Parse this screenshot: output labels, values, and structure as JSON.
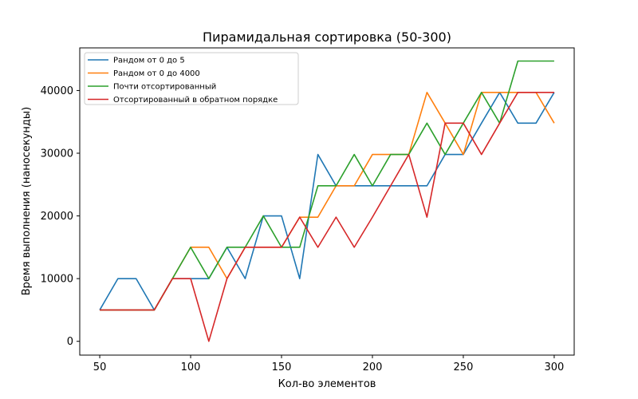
{
  "chart_data": {
    "type": "line",
    "title": "Пирамидальная сортировка (50-300)",
    "xlabel": "Кол-во элементов",
    "ylabel": "Время выполнения (наносекунды)",
    "xlim": [
      39,
      311
    ],
    "ylim": [
      -2200,
      46800
    ],
    "xticks": [
      50,
      100,
      150,
      200,
      250,
      300
    ],
    "yticks": [
      0,
      10000,
      20000,
      30000,
      40000
    ],
    "grid": false,
    "legend_position": "top-left",
    "x": [
      50,
      60,
      70,
      80,
      90,
      100,
      110,
      120,
      130,
      140,
      150,
      160,
      170,
      180,
      190,
      200,
      210,
      220,
      230,
      240,
      250,
      260,
      270,
      280,
      290,
      300
    ],
    "series": [
      {
        "name": "Рандом от 0 до 5",
        "color": "#1f77b4",
        "values": [
          5000,
          10000,
          10000,
          5000,
          10000,
          10000,
          10000,
          15000,
          10000,
          20000,
          20000,
          10000,
          29800,
          24800,
          24800,
          24800,
          24800,
          24800,
          24800,
          29800,
          29800,
          34800,
          39700,
          34800,
          34800,
          39700
        ]
      },
      {
        "name": "Рандом от 0 до 4000",
        "color": "#ff7f0e",
        "values": [
          5000,
          5000,
          5000,
          5000,
          10000,
          15000,
          15000,
          10000,
          15000,
          15000,
          15000,
          19800,
          19800,
          24800,
          24800,
          29800,
          29800,
          29800,
          39700,
          34800,
          29800,
          39700,
          39700,
          39700,
          39700,
          34800
        ]
      },
      {
        "name": "Почти отсортированный",
        "color": "#2ca02c",
        "values": [
          5000,
          5000,
          5000,
          5000,
          10000,
          15000,
          10000,
          15000,
          15000,
          20000,
          15000,
          15000,
          24800,
          24800,
          29800,
          24800,
          29800,
          29800,
          34800,
          29800,
          34800,
          39700,
          34800,
          44700,
          44700,
          44700
        ]
      },
      {
        "name": "Отсортированный в обратном порядке",
        "color": "#d62728",
        "values": [
          5000,
          5000,
          5000,
          5000,
          10000,
          10000,
          0,
          10000,
          15000,
          15000,
          15000,
          19800,
          15000,
          19800,
          15000,
          19800,
          24800,
          29800,
          19800,
          34800,
          34800,
          29800,
          34800,
          39700,
          39700,
          39700
        ]
      }
    ]
  }
}
